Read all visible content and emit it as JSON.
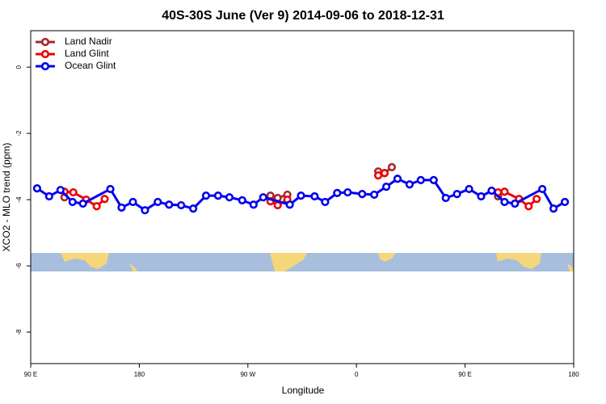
{
  "chart_data": {
    "type": "line",
    "title": "40S-30S June (Ver 9)   2014-09-06 to 2018-12-31",
    "x_label": "Longitude",
    "y_label": "XCO2 - MLO trend (ppm)",
    "xlim": [
      90,
      540
    ],
    "xticks": [
      {
        "value": 90,
        "label": "90 E"
      },
      180,
      {
        "value": 270,
        "label": "90 W"
      },
      {
        "value": 360,
        "label": "0"
      },
      {
        "value": 450,
        "label": "90 E"
      },
      {
        "value": 540,
        "label": "180"
      }
    ],
    "ylim": [
      -8.95,
      1.1
    ],
    "yticks": [
      0,
      -2,
      -4,
      -6,
      -8
    ],
    "legend": "top-left",
    "series": [
      {
        "name": "Land Nadir",
        "color": "#a52a2a",
        "x": [
          118,
          null,
          288.7,
          294.7,
          302.7,
          null,
          378,
          383.3,
          389.3,
          null,
          477.3
        ],
        "values": [
          -3.93,
          null,
          -3.88,
          -3.95,
          -3.85,
          null,
          -3.15,
          -3.2,
          -3.02,
          null,
          -3.9
        ]
      },
      {
        "name": "Land Glint",
        "color": "#ee0000",
        "x": [
          118,
          125.3,
          136,
          144.7,
          151.3,
          null,
          288.7,
          294.7,
          302.7,
          null,
          378,
          383.3,
          null,
          477.3,
          482.7,
          494.7,
          502.7,
          509.3
        ],
        "values": [
          -3.76,
          -3.78,
          -4.0,
          -4.2,
          -3.98,
          null,
          -4.05,
          -4.17,
          -4.0,
          null,
          -3.27,
          -3.2,
          null,
          -3.78,
          -3.76,
          -3.98,
          -4.2,
          -3.98
        ]
      },
      {
        "name": "Ocean Glint",
        "color": "#0000ee",
        "x": [
          95.3,
          105.3,
          114.7,
          124.7,
          133.3,
          156,
          165.3,
          174.7,
          184.7,
          195.3,
          204.7,
          214.7,
          224.7,
          235.3,
          245.3,
          254.7,
          265.3,
          274.7,
          282.7,
          304.7,
          314,
          325.3,
          334,
          344,
          352.7,
          364.7,
          374.7,
          384.7,
          394,
          404,
          413.3,
          424,
          434,
          443.3,
          453.3,
          463.3,
          472,
          482.7,
          491.3,
          514,
          523.3,
          532.7
        ],
        "values": [
          -3.66,
          -3.9,
          -3.71,
          -4.07,
          -4.12,
          -3.68,
          -4.24,
          -4.07,
          -4.32,
          -4.07,
          -4.15,
          -4.17,
          -4.27,
          -3.88,
          -3.88,
          -3.93,
          -4.02,
          -4.15,
          -3.93,
          -4.15,
          -3.88,
          -3.9,
          -4.07,
          -3.8,
          -3.78,
          -3.83,
          -3.85,
          -3.61,
          -3.37,
          -3.54,
          -3.41,
          -3.41,
          -3.95,
          -3.83,
          -3.68,
          -3.9,
          -3.73,
          -4.07,
          -4.12,
          -3.68,
          -4.27,
          -4.07
        ]
      }
    ]
  }
}
